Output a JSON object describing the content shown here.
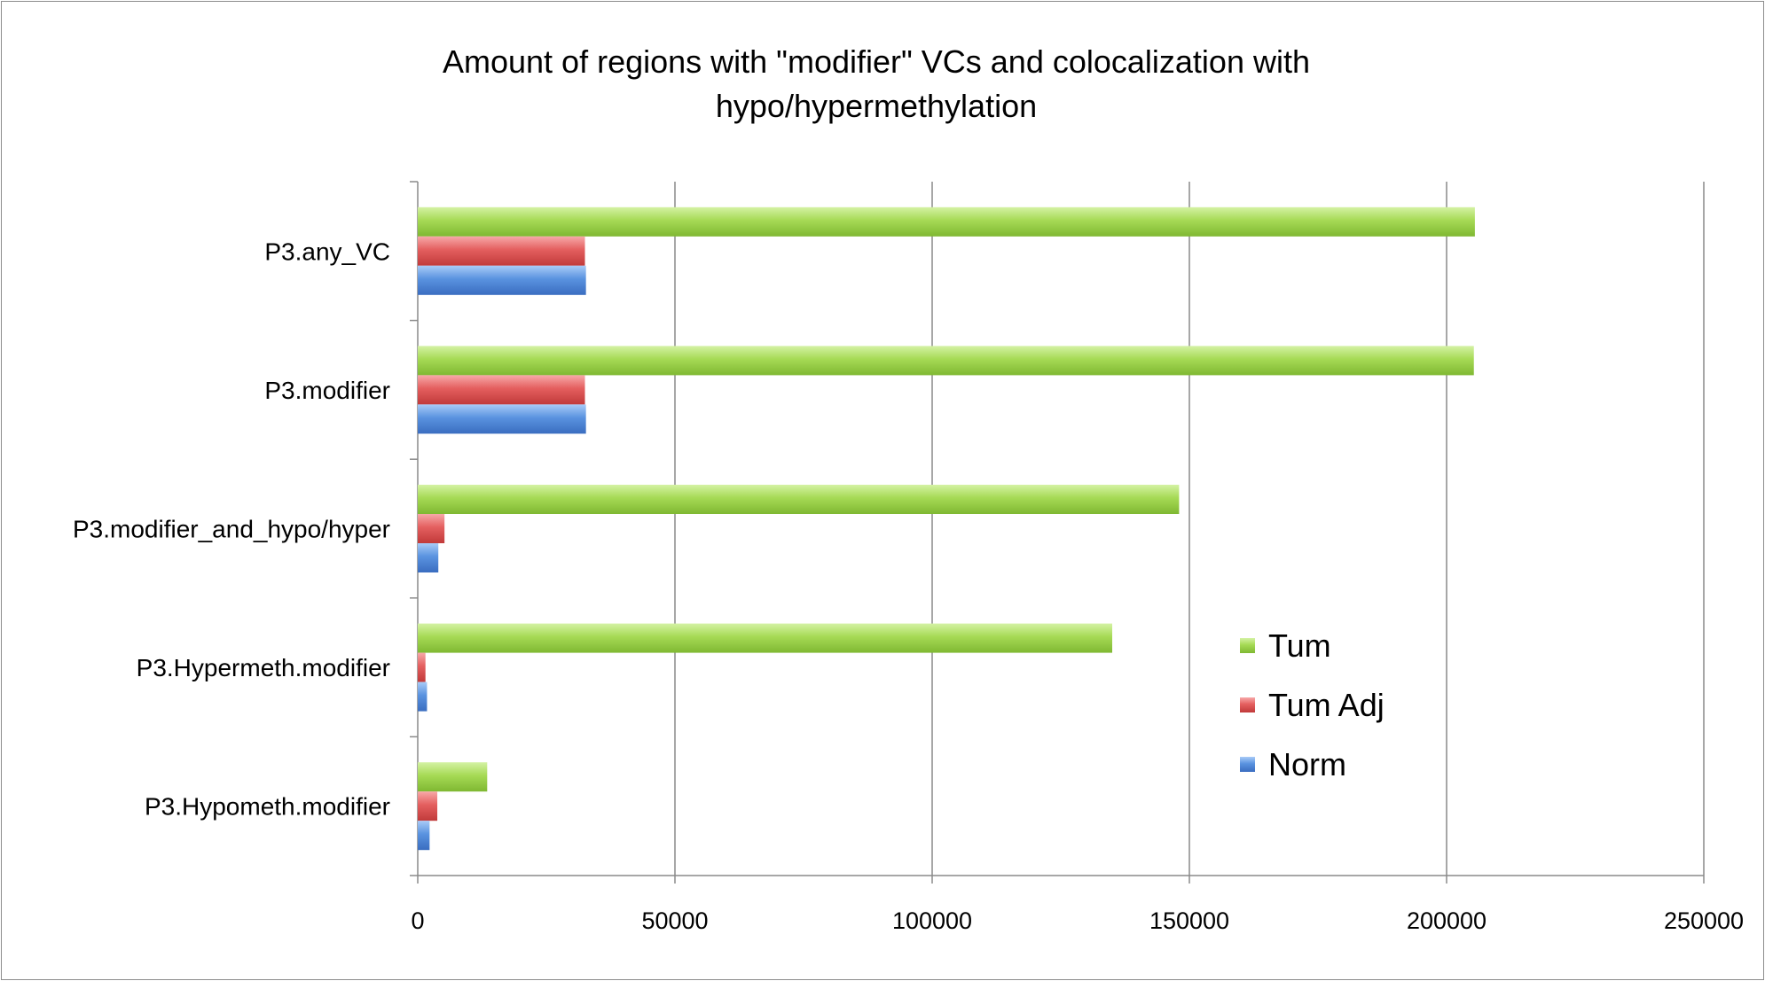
{
  "chart_data": {
    "type": "bar",
    "orientation": "horizontal",
    "title": "Amount of regions with \"modifier\" VCs and colocalization with hypo/hypermethylation",
    "title_lines": [
      "Amount of regions with \"modifier\" VCs and colocalization with",
      "hypo/hypermethylation"
    ],
    "categories": [
      "P3.any_VC",
      "P3.modifier",
      "P3.modifier_and_hypo/hyper",
      "P3.Hypermeth.modifier",
      "P3.Hypometh.modifier"
    ],
    "series": [
      {
        "name": "Tum",
        "color": "#9dd34a",
        "values": [
          205500,
          205300,
          148000,
          135000,
          13500
        ]
      },
      {
        "name": "Tum Adj",
        "color": "#e05a5a",
        "values": [
          32500,
          32500,
          5200,
          1500,
          3800
        ]
      },
      {
        "name": "Norm",
        "color": "#4a86d8",
        "values": [
          32700,
          32700,
          4000,
          1800,
          2300
        ]
      }
    ],
    "xlim": [
      0,
      250000
    ],
    "xticks": [
      "0",
      "50000",
      "100000",
      "150000",
      "200000",
      "250000"
    ],
    "grid": true,
    "legend_position": "right"
  }
}
